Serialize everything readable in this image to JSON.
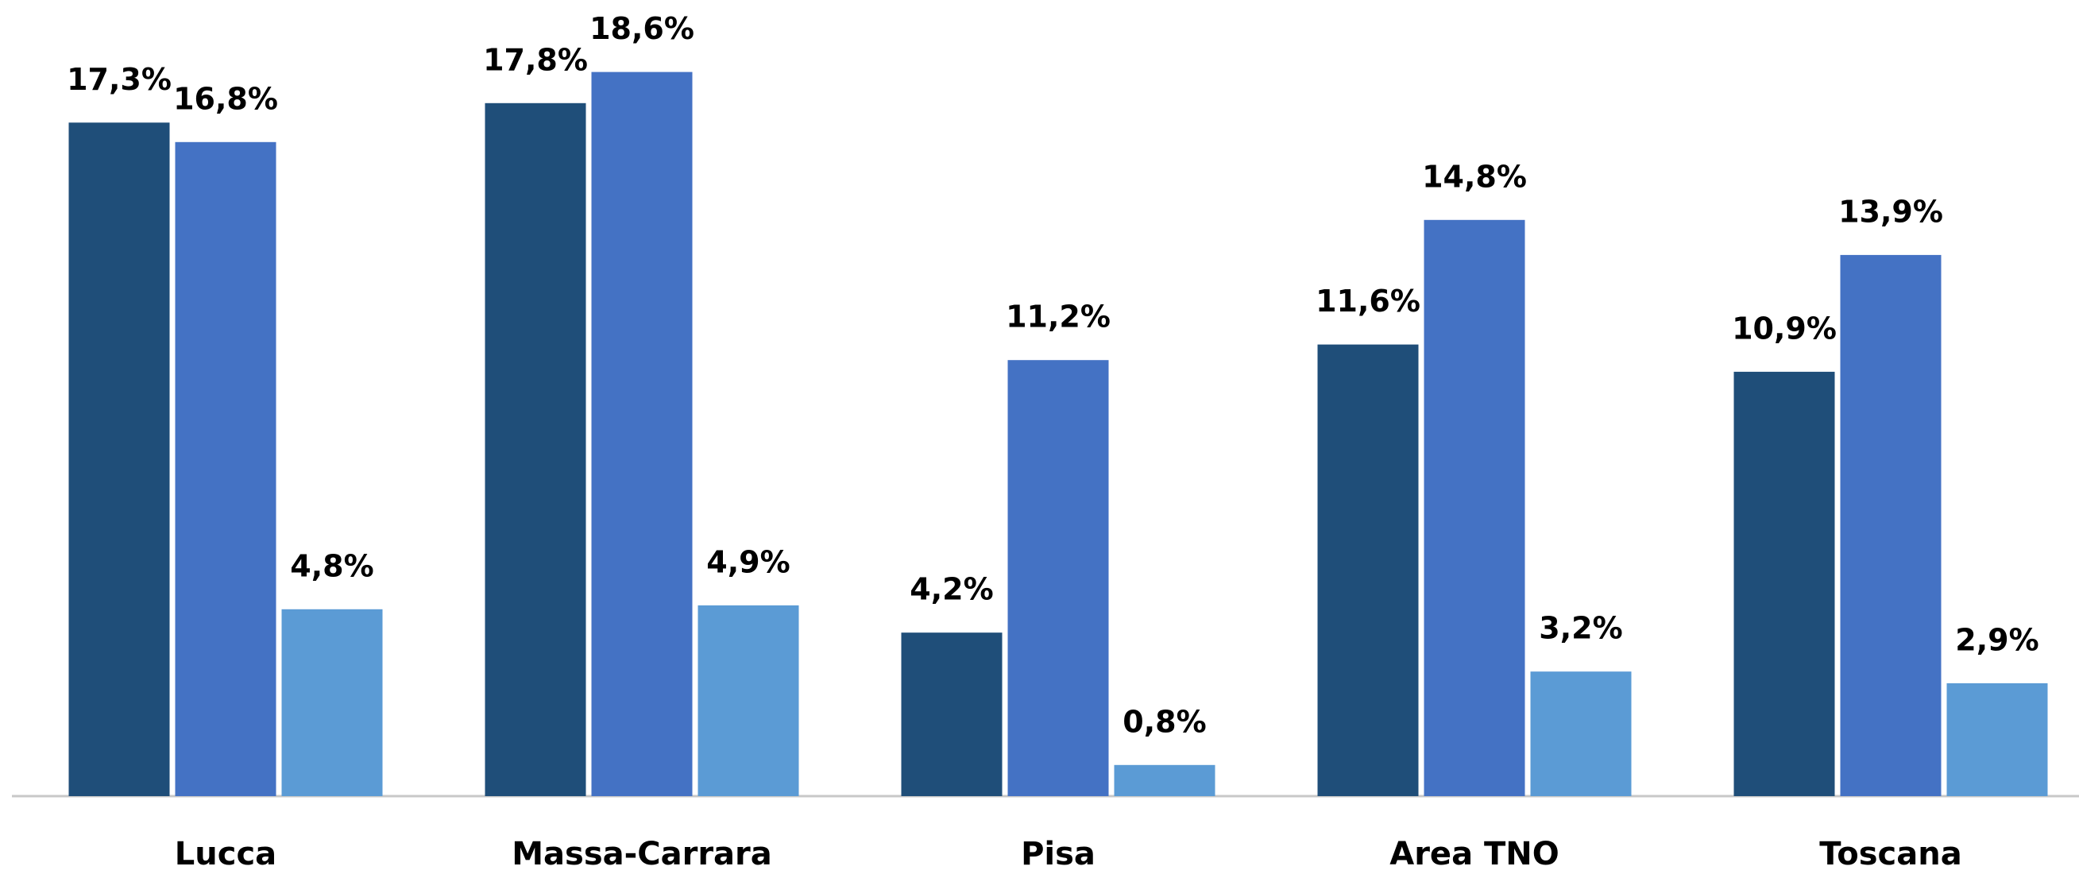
{
  "chart_data": {
    "type": "bar",
    "categories": [
      "Lucca",
      "Massa-Carrara",
      "Pisa",
      "Area TNO",
      "Toscana"
    ],
    "series": [
      {
        "color": "#1f4e79",
        "values": [
          17.3,
          17.8,
          4.2,
          11.6,
          10.9
        ],
        "value_labels": [
          "17,3%",
          "17,8%",
          "4,2%",
          "11,6%",
          "10,9%"
        ]
      },
      {
        "color": "#4472c4",
        "values": [
          16.8,
          18.6,
          11.2,
          14.8,
          13.9
        ],
        "value_labels": [
          "16,8%",
          "18,6%",
          "11,2%",
          "14,8%",
          "13,9%"
        ]
      },
      {
        "color": "#5b9bd5",
        "values": [
          4.8,
          4.9,
          0.8,
          3.2,
          2.9
        ],
        "value_labels": [
          "4,8%",
          "4,9%",
          "0,8%",
          "3,2%",
          "2,9%"
        ]
      }
    ],
    "ylim": [
      0,
      20
    ]
  }
}
